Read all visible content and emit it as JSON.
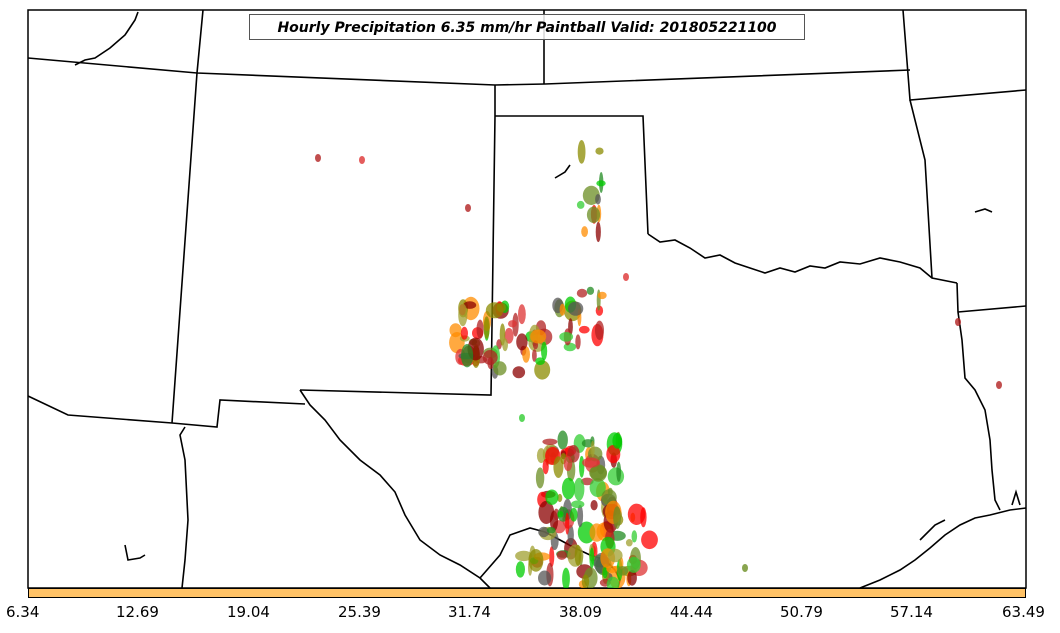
{
  "title": "Hourly Precipitation 6.35 mm/hr Paintball Valid: 201805221100",
  "colorbar": {
    "color": "#ffc266",
    "ticks": [
      "6.34",
      "12.69",
      "19.04",
      "25.39",
      "31.74",
      "38.09",
      "44.44",
      "50.79",
      "57.14",
      "63.49"
    ]
  },
  "map": {
    "background": "#ffffff",
    "border_color": "#000000",
    "member_colors": [
      "#ff0000",
      "#ff8c00",
      "#00cc00",
      "#228b22",
      "#8b0000",
      "#b22222",
      "#555555",
      "#8b8b00",
      "#32cd32",
      "#a0a030",
      "#dd3333",
      "#6b8e23"
    ]
  }
}
